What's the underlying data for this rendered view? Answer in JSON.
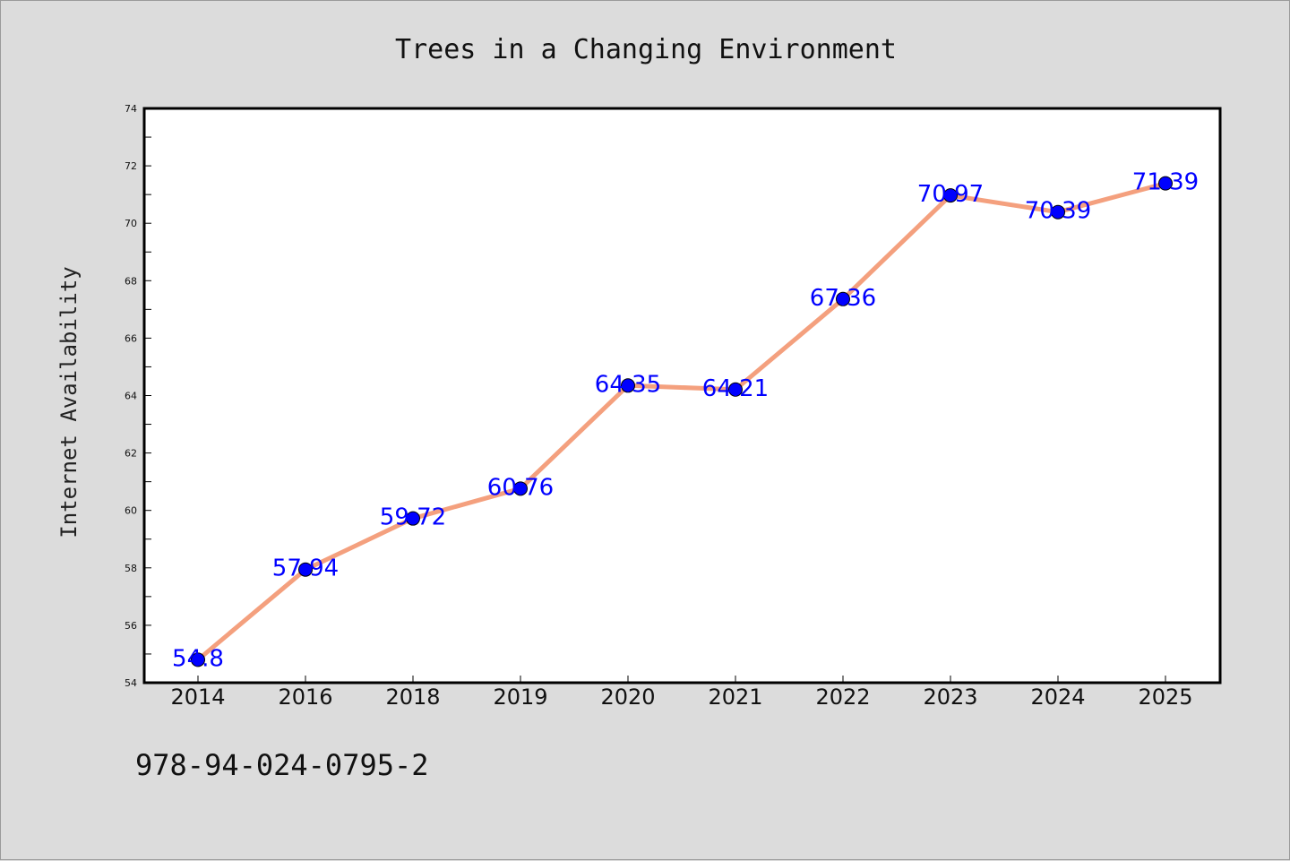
{
  "chart_data": {
    "type": "line",
    "title": "Trees in a Changing Environment",
    "xlabel": "",
    "ylabel": "Internet Availability",
    "categories": [
      "2014",
      "2016",
      "2018",
      "2019",
      "2020",
      "2021",
      "2022",
      "2023",
      "2024",
      "2025"
    ],
    "series": [
      {
        "values": [
          54.8,
          57.94,
          59.72,
          60.76,
          64.35,
          64.21,
          67.36,
          70.97,
          70.39,
          71.39
        ],
        "line_color": "#f4a07e",
        "marker_color": "#0000ff"
      }
    ],
    "data_labels": [
      "54.8",
      "57.94",
      "59.72",
      "60.76",
      "64.35",
      "64.21",
      "67.36",
      "70.97",
      "70.39",
      "71.39"
    ],
    "ylim": [
      54,
      74
    ],
    "y_ticks": [
      "54",
      "56",
      "58",
      "60",
      "62",
      "64",
      "66",
      "68",
      "70",
      "72",
      "74"
    ],
    "grid": false,
    "legend": "none",
    "data_label_color": "#0000ff"
  },
  "footer": {
    "identifier": "978-94-024-0795-2"
  },
  "colors": {
    "background": "#dcdcdc",
    "plot_background": "#ffffff",
    "axis": "#000000"
  }
}
